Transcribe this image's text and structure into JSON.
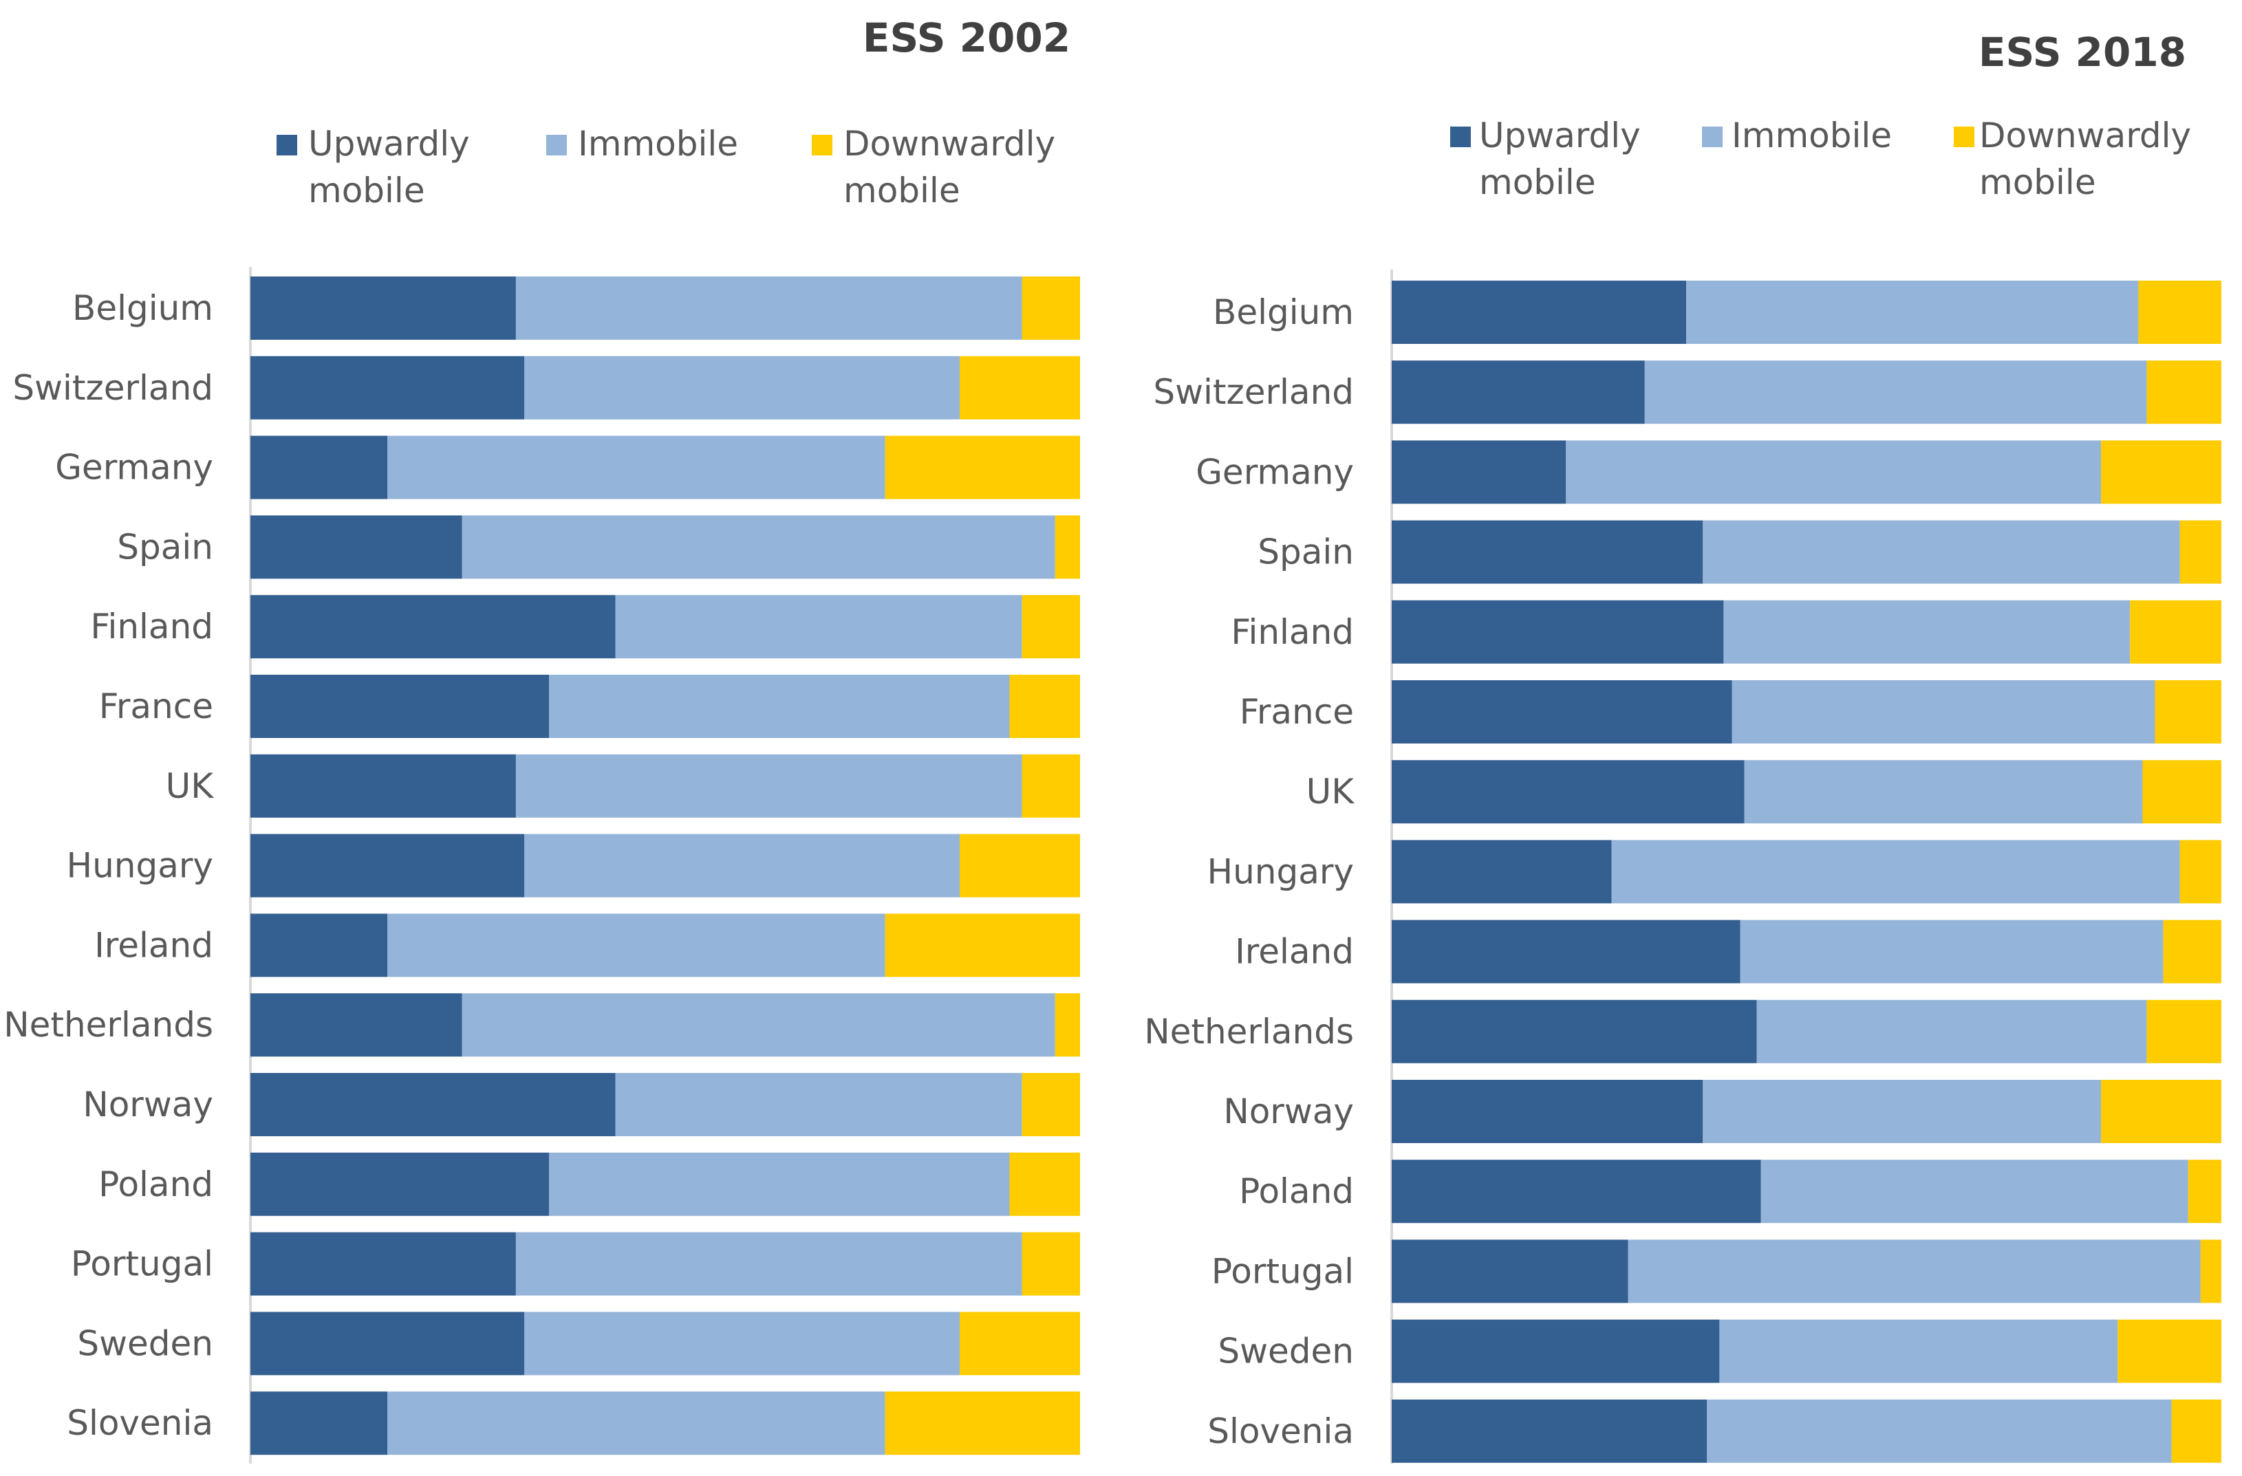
{
  "colors": {
    "upward": "#345f91",
    "immobile": "#95b4d9",
    "downward": "#ffcc00",
    "axis": "#d9d9d9",
    "text": "#595959",
    "title": "#404040"
  },
  "chart_data": [
    {
      "type": "bar",
      "orientation": "horizontal",
      "stacked": "percent",
      "title": "ESS 2002",
      "legend_position": "top",
      "legend": [
        {
          "lines": [
            "Upwardly",
            "mobile"
          ]
        },
        {
          "lines": [
            "Immobile"
          ]
        },
        {
          "lines": [
            "Downwardly",
            "mobile"
          ]
        }
      ],
      "xlim": [
        0,
        100
      ],
      "categories": [
        "Belgium",
        "Switzerland",
        "Germany",
        "Spain",
        "Finland",
        "France",
        "UK",
        "Hungary",
        "Ireland",
        "Netherlands",
        "Norway",
        "Poland",
        "Portugal",
        "Sweden",
        "Slovenia"
      ],
      "series": [
        {
          "name": "Upwardly mobile",
          "values": [
            32,
            33,
            16.5,
            25.5,
            44,
            36,
            32,
            33,
            16.5,
            25.5,
            44,
            36,
            32,
            33,
            16.5
          ]
        },
        {
          "name": "Immobile",
          "values": [
            61,
            52.5,
            60,
            71.5,
            49,
            55.5,
            61,
            52.5,
            60,
            71.5,
            49,
            55.5,
            61,
            52.5,
            60
          ]
        },
        {
          "name": "Downwardly mobile",
          "values": [
            7,
            14.5,
            23.5,
            3,
            7,
            8.5,
            7,
            14.5,
            23.5,
            3,
            7,
            8.5,
            7,
            14.5,
            23.5
          ]
        }
      ]
    },
    {
      "type": "bar",
      "orientation": "horizontal",
      "stacked": "percent",
      "title": "ESS 2018",
      "legend_position": "top",
      "legend": [
        {
          "lines": [
            "Upwardly",
            "mobile"
          ]
        },
        {
          "lines": [
            "Immobile"
          ]
        },
        {
          "lines": [
            "Downwardly",
            "mobile"
          ]
        }
      ],
      "xlim": [
        0,
        100
      ],
      "categories": [
        "Belgium",
        "Switzerland",
        "Germany",
        "Spain",
        "Finland",
        "France",
        "UK",
        "Hungary",
        "Ireland",
        "Netherlands",
        "Norway",
        "Poland",
        "Portugal",
        "Sweden",
        "Slovenia"
      ],
      "series": [
        {
          "name": "Upwardly mobile",
          "values": [
            35.5,
            30.5,
            21,
            37.5,
            40,
            41,
            42.5,
            26.5,
            42,
            44,
            37.5,
            44.5,
            28.5,
            39.5,
            38
          ]
        },
        {
          "name": "Immobile",
          "values": [
            54.5,
            60.5,
            64.5,
            57.5,
            49,
            51,
            48,
            68.5,
            51,
            47,
            48,
            51.5,
            69,
            48,
            56
          ]
        },
        {
          "name": "Downwardly mobile",
          "values": [
            10,
            9,
            14.5,
            5,
            11,
            8,
            9.5,
            5,
            7,
            9,
            14.5,
            4,
            2.5,
            12.5,
            6
          ]
        }
      ]
    }
  ]
}
